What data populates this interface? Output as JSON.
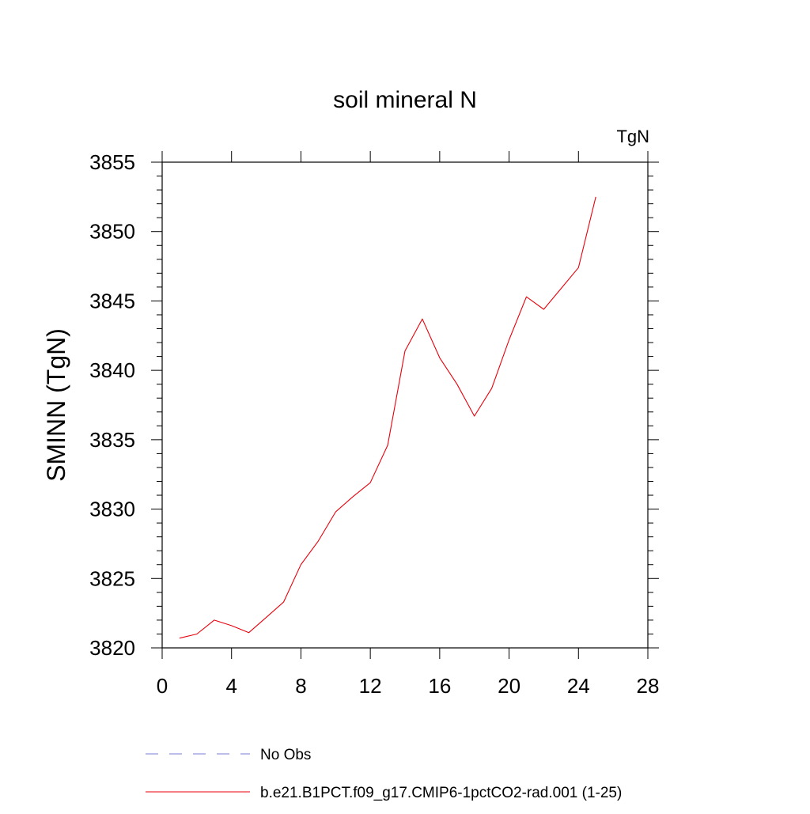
{
  "chart_data": {
    "type": "line",
    "title": "soil mineral N",
    "units_label": "TgN",
    "xlabel": "",
    "ylabel": "SMINN  (TgN)",
    "xlim": [
      0,
      28
    ],
    "ylim": [
      3820,
      3855
    ],
    "x_ticks": [
      0,
      4,
      8,
      12,
      16,
      20,
      24,
      28
    ],
    "y_ticks": [
      3820,
      3825,
      3830,
      3835,
      3840,
      3845,
      3850,
      3855
    ],
    "grid": false,
    "legend": [
      {
        "label": "No Obs",
        "color": "#7b7bd6",
        "style": "dashed"
      },
      {
        "label": "b.e21.B1PCT.f09_g17.CMIP6-1pctCO2-rad.001 (1-25)",
        "color": "#e8000b",
        "style": "solid"
      }
    ],
    "series": [
      {
        "name": "b.e21.B1PCT.f09_g17.CMIP6-1pctCO2-rad.001 (1-25)",
        "color": "#e8000b",
        "x": [
          1,
          2,
          3,
          4,
          5,
          6,
          7,
          8,
          9,
          10,
          11,
          12,
          13,
          14,
          15,
          16,
          17,
          18,
          19,
          20,
          21,
          22,
          23,
          24,
          25
        ],
        "values": [
          3820.7,
          3821.0,
          3822.0,
          3821.6,
          3821.1,
          3822.2,
          3823.3,
          3826.0,
          3827.7,
          3829.8,
          3830.9,
          3831.9,
          3834.6,
          3841.4,
          3843.7,
          3840.9,
          3839.0,
          3836.7,
          3838.7,
          3842.2,
          3845.3,
          3844.4,
          3845.9,
          3847.4,
          3852.5
        ]
      }
    ]
  }
}
